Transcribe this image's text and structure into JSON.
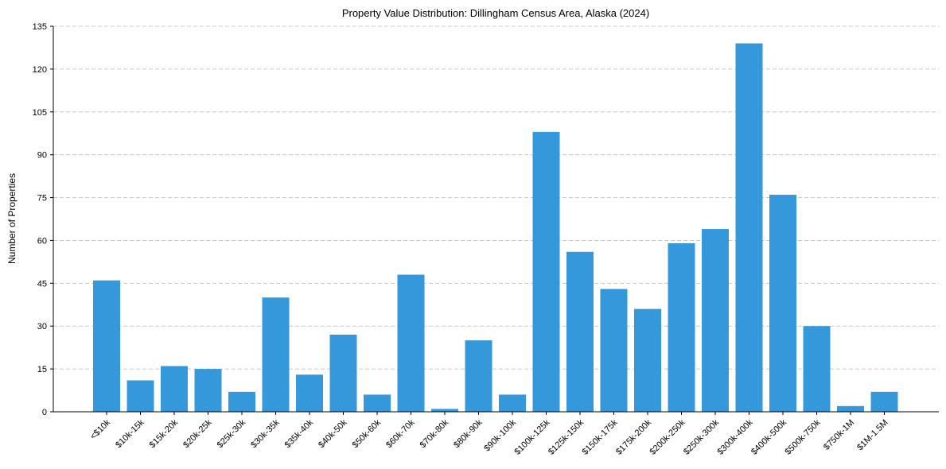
{
  "chart_data": {
    "type": "bar",
    "title": "Property Value Distribution: Dillingham Census Area, Alaska (2024)",
    "xlabel": "",
    "ylabel": "Number of Properties",
    "categories": [
      "<$10k",
      "$10k-15k",
      "$15k-20k",
      "$20k-25k",
      "$25k-30k",
      "$30k-35k",
      "$35k-40k",
      "$40k-50k",
      "$50k-60k",
      "$60k-70k",
      "$70k-80k",
      "$80k-90k",
      "$90k-100k",
      "$100k-125k",
      "$125k-150k",
      "$150k-175k",
      "$175k-200k",
      "$200k-250k",
      "$250k-300k",
      "$300k-400k",
      "$400k-500k",
      "$500k-750k",
      "$750k-1M",
      "$1M-1.5M"
    ],
    "values": [
      46,
      11,
      16,
      15,
      7,
      40,
      13,
      27,
      6,
      48,
      1,
      25,
      6,
      98,
      56,
      43,
      36,
      59,
      64,
      129,
      76,
      30,
      2,
      7
    ],
    "yticks": [
      "0",
      "15",
      "30",
      "45",
      "60",
      "75",
      "90",
      "105",
      "120",
      "135"
    ],
    "ylim": [
      0,
      135
    ],
    "grid": "y-dashed",
    "bar_color": "#3498db"
  }
}
